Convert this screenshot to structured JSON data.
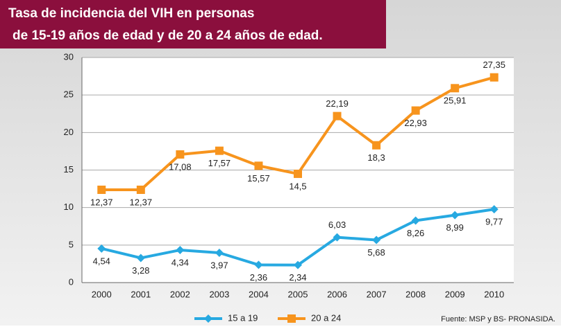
{
  "chart_data": {
    "type": "line",
    "title": [
      "Tasa de incidencia  del VIH en personas",
      "de 15-19 años de edad y de 20 a 24 años de edad."
    ],
    "categories": [
      "2000",
      "2001",
      "2002",
      "2003",
      "2004",
      "2005",
      "2006",
      "2007",
      "2008",
      "2009",
      "2010"
    ],
    "series": [
      {
        "name": "15 a 19",
        "color": "#27a9e1",
        "marker": "diamond",
        "values": [
          4.54,
          3.28,
          4.34,
          3.97,
          2.36,
          2.34,
          6.03,
          5.68,
          8.26,
          8.99,
          9.77
        ],
        "value_labels": [
          "4,54",
          "3,28",
          "4,34",
          "3,97",
          "2,36",
          "2,34",
          "6,03",
          "5,68",
          "8,26",
          "8,99",
          "9,77"
        ]
      },
      {
        "name": "20 a 24",
        "color": "#f7941d",
        "marker": "square",
        "values": [
          12.37,
          12.37,
          17.08,
          17.57,
          15.57,
          14.5,
          22.19,
          18.3,
          22.93,
          25.91,
          27.35
        ],
        "value_labels": [
          "12,37",
          "12,37",
          "17,08",
          "17,57",
          "15,57",
          "14,5",
          "22,19",
          "18,3",
          "22,93",
          "25,91",
          "27,35"
        ]
      }
    ],
    "ylim": [
      0,
      30
    ],
    "yticks": [
      0,
      5,
      10,
      15,
      20,
      25,
      30
    ],
    "grid": true,
    "legend": "bottom",
    "source": "Fuente: MSP y BS- PRONASIDA."
  }
}
